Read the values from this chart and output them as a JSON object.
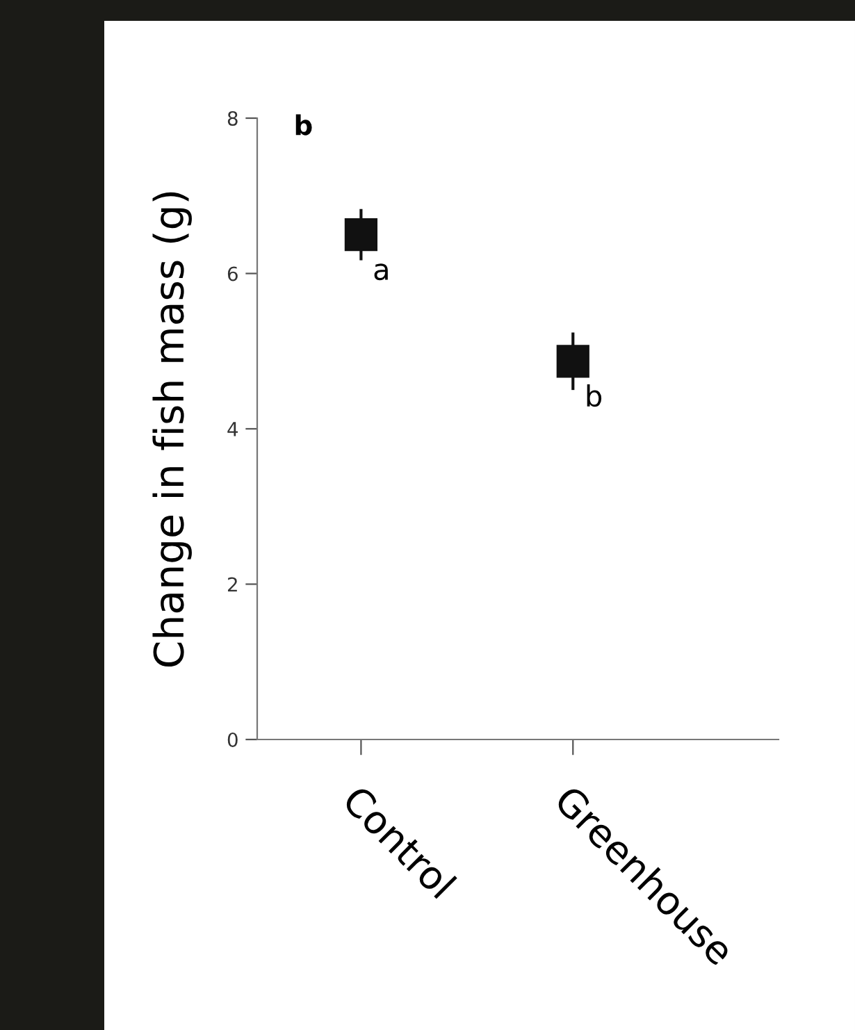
{
  "chart_data": {
    "type": "scatter",
    "ylabel": "Change in fish mass (g)",
    "categories": [
      "Control",
      "Greenhouse"
    ],
    "series": [
      {
        "color": "#111111",
        "values": [
          6.5,
          4.87
        ],
        "errors": [
          0.33,
          0.37
        ]
      }
    ],
    "marker": "square",
    "ylim": [
      0,
      8
    ],
    "yticks": [
      0,
      2,
      4,
      6,
      8
    ],
    "grid": false,
    "legend": false,
    "annotations": [
      "b",
      "a",
      "b"
    ]
  }
}
